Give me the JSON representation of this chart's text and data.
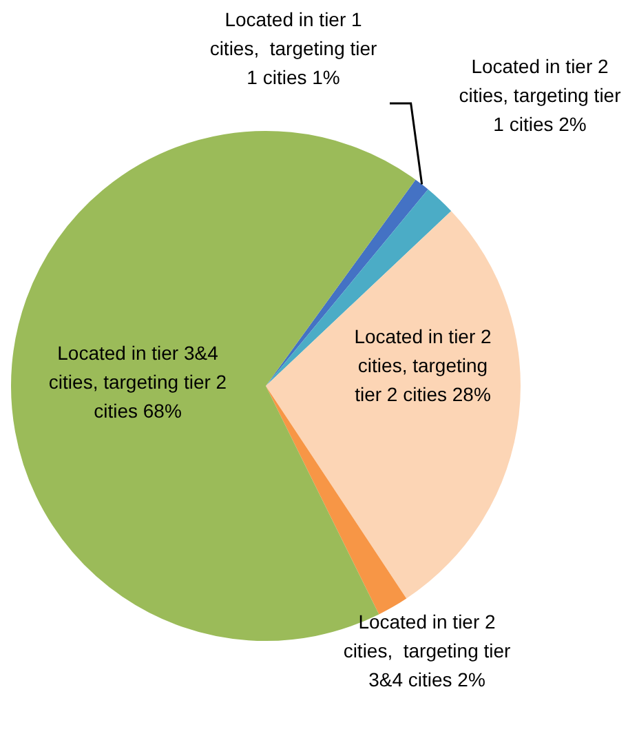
{
  "chart_data": {
    "type": "pie",
    "categories": [
      "Located in tier 1 cities,  targeting tier 1 cities",
      "Located in tier 2 cities, targeting tier 1 cities",
      "Located in tier 2 cities, targeting tier 2 cities",
      "Located in tier 2 cities,  targeting tier 3&4 cities",
      "Located in tier 3&4 cities, targeting tier 2 cities"
    ],
    "values": [
      1,
      2,
      28,
      2,
      68
    ],
    "colors": [
      "#4472c4",
      "#4bacc6",
      "#fcd5b5",
      "#f79646",
      "#9bbb59"
    ],
    "value_labels": [
      "1%",
      "2%",
      "28%",
      "2%",
      "68%"
    ],
    "legend": false
  }
}
